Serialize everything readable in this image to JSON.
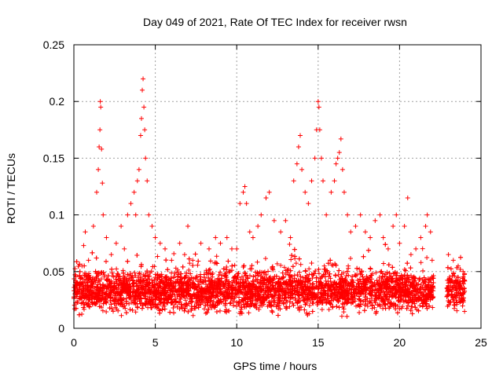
{
  "chart_data": {
    "type": "scatter",
    "title": "Day 049 of 2021, Rate Of TEC Index for receiver rwsn",
    "xlabel": "GPS time / hours",
    "ylabel": "ROTI / TECUs",
    "xlim": [
      0,
      25
    ],
    "ylim": [
      0,
      0.25
    ],
    "x_ticks": [
      0,
      5,
      10,
      15,
      20,
      25
    ],
    "x_tick_labels": [
      "0",
      "5",
      "10",
      "15",
      "20",
      "25"
    ],
    "y_ticks": [
      0,
      0.05,
      0.1,
      0.15,
      0.2,
      0.25
    ],
    "y_tick_labels": [
      "0",
      "0.05",
      "0.1",
      "0.15",
      "0.2",
      "0.25"
    ],
    "grid": true,
    "marker": "plus",
    "color": "#ff0000",
    "gaps_hours": [
      [
        22.1,
        22.9
      ]
    ],
    "data_range_hours": [
      0,
      24
    ],
    "points": [
      [
        0.1,
        0.047
      ],
      [
        0.2,
        0.03
      ],
      [
        0.5,
        0.055
      ],
      [
        0.6,
        0.073
      ],
      [
        0.7,
        0.085
      ],
      [
        0.9,
        0.06
      ],
      [
        1.2,
        0.09
      ],
      [
        1.4,
        0.12
      ],
      [
        1.5,
        0.14
      ],
      [
        1.55,
        0.16
      ],
      [
        1.6,
        0.175
      ],
      [
        1.62,
        0.2
      ],
      [
        1.65,
        0.195
      ],
      [
        1.7,
        0.158
      ],
      [
        1.75,
        0.128
      ],
      [
        1.8,
        0.1
      ],
      [
        2.0,
        0.08
      ],
      [
        2.3,
        0.065
      ],
      [
        2.6,
        0.075
      ],
      [
        2.9,
        0.09
      ],
      [
        3.1,
        0.07
      ],
      [
        3.3,
        0.1
      ],
      [
        3.5,
        0.11
      ],
      [
        3.7,
        0.12
      ],
      [
        3.8,
        0.1
      ],
      [
        3.9,
        0.13
      ],
      [
        4.0,
        0.14
      ],
      [
        4.1,
        0.17
      ],
      [
        4.15,
        0.185
      ],
      [
        4.2,
        0.21
      ],
      [
        4.25,
        0.22
      ],
      [
        4.3,
        0.195
      ],
      [
        4.35,
        0.175
      ],
      [
        4.4,
        0.15
      ],
      [
        4.5,
        0.13
      ],
      [
        4.6,
        0.1
      ],
      [
        4.8,
        0.09
      ],
      [
        5.0,
        0.08
      ],
      [
        5.3,
        0.075
      ],
      [
        5.6,
        0.07
      ],
      [
        6.0,
        0.06
      ],
      [
        6.5,
        0.075
      ],
      [
        6.8,
        0.065
      ],
      [
        7.0,
        0.09
      ],
      [
        7.3,
        0.06
      ],
      [
        7.8,
        0.075
      ],
      [
        8.3,
        0.07
      ],
      [
        8.7,
        0.08
      ],
      [
        9.0,
        0.075
      ],
      [
        9.4,
        0.08
      ],
      [
        9.7,
        0.07
      ],
      [
        10.0,
        0.07
      ],
      [
        10.2,
        0.11
      ],
      [
        10.4,
        0.12
      ],
      [
        10.5,
        0.125
      ],
      [
        10.6,
        0.11
      ],
      [
        10.8,
        0.085
      ],
      [
        11.0,
        0.08
      ],
      [
        11.3,
        0.09
      ],
      [
        11.5,
        0.1
      ],
      [
        11.8,
        0.115
      ],
      [
        12.0,
        0.12
      ],
      [
        12.3,
        0.095
      ],
      [
        12.7,
        0.085
      ],
      [
        13.0,
        0.095
      ],
      [
        13.3,
        0.08
      ],
      [
        13.5,
        0.13
      ],
      [
        13.7,
        0.145
      ],
      [
        13.8,
        0.16
      ],
      [
        13.9,
        0.17
      ],
      [
        14.0,
        0.14
      ],
      [
        14.2,
        0.12
      ],
      [
        14.4,
        0.11
      ],
      [
        14.6,
        0.13
      ],
      [
        14.8,
        0.15
      ],
      [
        14.9,
        0.175
      ],
      [
        15.0,
        0.2
      ],
      [
        15.05,
        0.195
      ],
      [
        15.1,
        0.175
      ],
      [
        15.2,
        0.15
      ],
      [
        15.3,
        0.13
      ],
      [
        15.5,
        0.1
      ],
      [
        15.8,
        0.12
      ],
      [
        16.0,
        0.13
      ],
      [
        16.1,
        0.145
      ],
      [
        16.2,
        0.15
      ],
      [
        16.3,
        0.155
      ],
      [
        16.4,
        0.167
      ],
      [
        16.5,
        0.14
      ],
      [
        16.6,
        0.12
      ],
      [
        16.8,
        0.1
      ],
      [
        17.0,
        0.085
      ],
      [
        17.3,
        0.09
      ],
      [
        17.6,
        0.1
      ],
      [
        17.9,
        0.085
      ],
      [
        18.2,
        0.08
      ],
      [
        18.5,
        0.095
      ],
      [
        18.8,
        0.1
      ],
      [
        19.0,
        0.08
      ],
      [
        19.3,
        0.07
      ],
      [
        19.6,
        0.09
      ],
      [
        19.8,
        0.1
      ],
      [
        20.0,
        0.075
      ],
      [
        20.3,
        0.09
      ],
      [
        20.5,
        0.115
      ],
      [
        20.7,
        0.065
      ],
      [
        21.0,
        0.07
      ],
      [
        21.3,
        0.08
      ],
      [
        21.6,
        0.09
      ],
      [
        21.7,
        0.1
      ],
      [
        21.9,
        0.085
      ],
      [
        22.0,
        0.06
      ],
      [
        23.0,
        0.065
      ],
      [
        23.3,
        0.06
      ],
      [
        23.6,
        0.055
      ],
      [
        23.9,
        0.05
      ]
    ]
  }
}
